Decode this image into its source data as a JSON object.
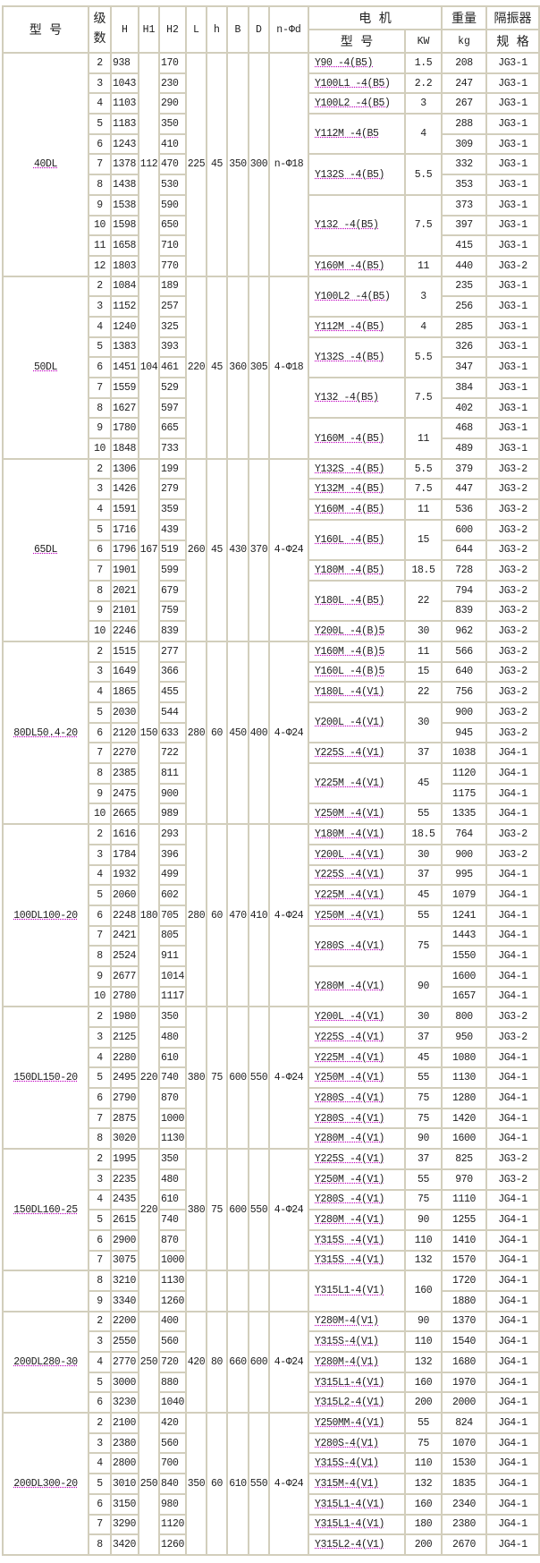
{
  "header": {
    "model": "型 号",
    "stages": "级数",
    "H": "H",
    "H1": "H1",
    "H2": "H2",
    "L": "L",
    "h": "h",
    "B": "B",
    "D": "D",
    "holes": "n-Φd",
    "motor": "电 机",
    "weight": "重量",
    "isolator": "隔振器",
    "motor_model": "型 号",
    "kw": "KW",
    "kg": "kg",
    "spec": "规 格"
  },
  "row_columns": [
    "stages",
    "H",
    "H2",
    "kg",
    "isolator_spec"
  ],
  "motor_columns": [
    "model",
    "kw",
    "rowspan"
  ],
  "groups": [
    {
      "model": "40DL",
      "H1": "112",
      "L": "225",
      "h": "45",
      "B": "350",
      "D": "300",
      "holes": "n-Φ18",
      "rows": [
        [
          "2",
          "938",
          "170",
          "208",
          "JG3-1"
        ],
        [
          "3",
          "1043",
          "230",
          "247",
          "JG3-1"
        ],
        [
          "4",
          "1103",
          "290",
          "267",
          "JG3-1"
        ],
        [
          "5",
          "1183",
          "350",
          "288",
          "JG3-1"
        ],
        [
          "6",
          "1243",
          "410",
          "309",
          "JG3-1"
        ],
        [
          "7",
          "1378",
          "470",
          "332",
          "JG3-1"
        ],
        [
          "8",
          "1438",
          "530",
          "353",
          "JG3-1"
        ],
        [
          "9",
          "1538",
          "590",
          "373",
          "JG3-1"
        ],
        [
          "10",
          "1598",
          "650",
          "397",
          "JG3-1"
        ],
        [
          "11",
          "1658",
          "710",
          "415",
          "JG3-1"
        ],
        [
          "12",
          "1803",
          "770",
          "440",
          "JG3-2"
        ]
      ],
      "motors": [
        [
          "Y90 -4(B5)",
          "1.5",
          1
        ],
        [
          "Y100L1 -4(B5)",
          "2.2",
          1
        ],
        [
          "Y100L2 -4(B5)",
          "3",
          1
        ],
        [
          "Y112M -4(B5",
          "4",
          2
        ],
        [
          "Y132S -4(B5)",
          "5.5",
          2
        ],
        [
          "Y132 -4(B5)",
          "7.5",
          3
        ],
        [
          "Y160M -4(B5)",
          "11",
          1
        ]
      ]
    },
    {
      "model": "50DL",
      "H1": "104",
      "L": "220",
      "h": "45",
      "B": "360",
      "D": "305",
      "holes": "4-Φ18",
      "rows": [
        [
          "2",
          "1084",
          "189",
          "235",
          "JG3-1"
        ],
        [
          "3",
          "1152",
          "257",
          "256",
          "JG3-1"
        ],
        [
          "4",
          "1240",
          "325",
          "285",
          "JG3-1"
        ],
        [
          "5",
          "1383",
          "393",
          "326",
          "JG3-1"
        ],
        [
          "6",
          "1451",
          "461",
          "347",
          "JG3-1"
        ],
        [
          "7",
          "1559",
          "529",
          "384",
          "JG3-1"
        ],
        [
          "8",
          "1627",
          "597",
          "402",
          "JG3-1"
        ],
        [
          "9",
          "1780",
          "665",
          "468",
          "JG3-1"
        ],
        [
          "10",
          "1848",
          "733",
          "489",
          "JG3-1"
        ]
      ],
      "motors": [
        [
          "Y100L2 -4(B5)",
          "3",
          2
        ],
        [
          "Y112M -4(B5)",
          "4",
          1
        ],
        [
          "Y132S -4(B5)",
          "5.5",
          2
        ],
        [
          "Y132 -4(B5)",
          "7.5",
          2
        ],
        [
          "Y160M -4(B5)",
          "11",
          2
        ]
      ]
    },
    {
      "model": "65DL",
      "H1": "167",
      "L": "260",
      "h": "45",
      "B": "430",
      "D": "370",
      "holes": "4-Φ24",
      "rows": [
        [
          "2",
          "1306",
          "199",
          "379",
          "JG3-2"
        ],
        [
          "3",
          "1426",
          "279",
          "447",
          "JG3-2"
        ],
        [
          "4",
          "1591",
          "359",
          "536",
          "JG3-2"
        ],
        [
          "5",
          "1716",
          "439",
          "600",
          "JG3-2"
        ],
        [
          "6",
          "1796",
          "519",
          "644",
          "JG3-2"
        ],
        [
          "7",
          "1901",
          "599",
          "728",
          "JG3-2"
        ],
        [
          "8",
          "2021",
          "679",
          "794",
          "JG3-2"
        ],
        [
          "9",
          "2101",
          "759",
          "839",
          "JG3-2"
        ],
        [
          "10",
          "2246",
          "839",
          "962",
          "JG3-2"
        ]
      ],
      "motors": [
        [
          "Y132S -4(B5)",
          "5.5",
          1
        ],
        [
          "Y132M -4(B5)",
          "7.5",
          1
        ],
        [
          "Y160M -4(B5)",
          "11",
          1
        ],
        [
          "Y160L -4(B5)",
          "15",
          2
        ],
        [
          "Y180M -4(B5)",
          "18.5",
          1
        ],
        [
          "Y180L -4(B5)",
          "22",
          2
        ],
        [
          "Y200L -4(B)5",
          "30",
          1
        ]
      ]
    },
    {
      "model": "80DL50.4-20",
      "H1": "150",
      "L": "280",
      "h": "60",
      "B": "450",
      "D": "400",
      "holes": "4-Φ24",
      "rows": [
        [
          "2",
          "1515",
          "277",
          "566",
          "JG3-2"
        ],
        [
          "3",
          "1649",
          "366",
          "640",
          "JG3-2"
        ],
        [
          "4",
          "1865",
          "455",
          "756",
          "JG3-2"
        ],
        [
          "5",
          "2030",
          "544",
          "900",
          "JG3-2"
        ],
        [
          "6",
          "2120",
          "633",
          "945",
          "JG3-2"
        ],
        [
          "7",
          "2270",
          "722",
          "1038",
          "JG4-1"
        ],
        [
          "8",
          "2385",
          "811",
          "1120",
          "JG4-1"
        ],
        [
          "9",
          "2475",
          "900",
          "1175",
          "JG4-1"
        ],
        [
          "10",
          "2665",
          "989",
          "1335",
          "JG4-1"
        ]
      ],
      "motors": [
        [
          "Y160M -4(B)5",
          "11",
          1
        ],
        [
          "Y160L -4(B)5",
          "15",
          1
        ],
        [
          "Y180L -4(V1)",
          "22",
          1
        ],
        [
          "Y200L -4(V1)",
          "30",
          2
        ],
        [
          "Y225S -4(V1)",
          "37",
          1
        ],
        [
          "Y225M -4(V1)",
          "45",
          2
        ],
        [
          "Y250M -4(V1)",
          "55",
          1
        ]
      ]
    },
    {
      "model": "100DL100-20",
      "H1": "180",
      "L": "280",
      "h": "60",
      "B": "470",
      "D": "410",
      "holes": "4-Φ24",
      "rows": [
        [
          "2",
          "1616",
          "293",
          "764",
          "JG3-2"
        ],
        [
          "3",
          "1784",
          "396",
          "900",
          "JG3-2"
        ],
        [
          "4",
          "1932",
          "499",
          "995",
          "JG4-1"
        ],
        [
          "5",
          "2060",
          "602",
          "1079",
          "JG4-1"
        ],
        [
          "6",
          "2248",
          "705",
          "1241",
          "JG4-1"
        ],
        [
          "7",
          "2421",
          "805",
          "1443",
          "JG4-1"
        ],
        [
          "8",
          "2524",
          "911",
          "1550",
          "JG4-1"
        ],
        [
          "9",
          "2677",
          "1014",
          "1600",
          "JG4-1"
        ],
        [
          "10",
          "2780",
          "1117",
          "1657",
          "JG4-1"
        ]
      ],
      "motors": [
        [
          "Y180M -4(V1)",
          "18.5",
          1
        ],
        [
          "Y200L -4(V1)",
          "30",
          1
        ],
        [
          "Y225S -4(V1)",
          "37",
          1
        ],
        [
          "Y225M -4(V1)",
          "45",
          1
        ],
        [
          "Y250M -4(V1)",
          "55",
          1
        ],
        [
          "Y280S -4(V1)",
          "75",
          2
        ],
        [
          "Y280M -4(V1)",
          "90",
          2
        ]
      ]
    },
    {
      "model": "150DL150-20",
      "H1": "220",
      "L": "380",
      "h": "75",
      "B": "600",
      "D": "550",
      "holes": "4-Φ24",
      "rows": [
        [
          "2",
          "1980",
          "350",
          "800",
          "JG3-2"
        ],
        [
          "3",
          "2125",
          "480",
          "950",
          "JG3-2"
        ],
        [
          "4",
          "2280",
          "610",
          "1080",
          "JG4-1"
        ],
        [
          "5",
          "2495",
          "740",
          "1130",
          "JG4-1"
        ],
        [
          "6",
          "2790",
          "870",
          "1280",
          "JG4-1"
        ],
        [
          "7",
          "2875",
          "1000",
          "1420",
          "JG4-1"
        ],
        [
          "8",
          "3020",
          "1130",
          "1600",
          "JG4-1"
        ]
      ],
      "motors": [
        [
          "Y200L -4(V1)",
          "30",
          1
        ],
        [
          "Y225S -4(V1)",
          "37",
          1
        ],
        [
          "Y225M -4(V1)",
          "45",
          1
        ],
        [
          "Y250M -4(V1)",
          "55",
          1
        ],
        [
          "Y280S -4(V1)",
          "75",
          1
        ],
        [
          "Y280S -4(V1)",
          "75",
          1
        ],
        [
          "Y280M -4(V1)",
          "90",
          1
        ]
      ]
    },
    {
      "model": "150DL160-25",
      "H1": "220",
      "L": "380",
      "h": "75",
      "B": "600",
      "D": "550",
      "holes": "4-Φ24",
      "rows": [
        [
          "2",
          "1995",
          "350",
          "825",
          "JG3-2"
        ],
        [
          "3",
          "2235",
          "480",
          "970",
          "JG3-2"
        ],
        [
          "4",
          "2435",
          "610",
          "1110",
          "JG4-1"
        ],
        [
          "5",
          "2615",
          "740",
          "1255",
          "JG4-1"
        ],
        [
          "6",
          "2900",
          "870",
          "1410",
          "JG4-1"
        ],
        [
          "7",
          "3075",
          "1000",
          "1570",
          "JG4-1"
        ]
      ],
      "motors": [
        [
          "Y225S -4(V1)",
          "37",
          1
        ],
        [
          "Y250M -4(V1)",
          "55",
          1
        ],
        [
          "Y280S -4(V1)",
          "75",
          1
        ],
        [
          "Y280M -4(V1)",
          "90",
          1
        ],
        [
          "Y315S -4(V1)",
          "110",
          1
        ],
        [
          "Y315S -4(V1)",
          "132",
          1
        ]
      ]
    },
    {
      "model": "",
      "H1": "",
      "L": "",
      "h": "",
      "B": "",
      "D": "",
      "holes": "",
      "rows": [
        [
          "8",
          "3210",
          "1130",
          "1720",
          "JG4-1"
        ],
        [
          "9",
          "3340",
          "1260",
          "1880",
          "JG4-1"
        ]
      ],
      "motors": [
        [
          "Y315L1-4(V1)",
          "160",
          2
        ]
      ]
    },
    {
      "model": "200DL280-30",
      "H1": "250",
      "L": "420",
      "h": "80",
      "B": "660",
      "D": "600",
      "holes": "4-Φ24",
      "rows": [
        [
          "2",
          "2200",
          "400",
          "1370",
          "JG4-1"
        ],
        [
          "3",
          "2550",
          "560",
          "1540",
          "JG4-1"
        ],
        [
          "4",
          "2770",
          "720",
          "1680",
          "JG4-1"
        ],
        [
          "5",
          "3000",
          "880",
          "1970",
          "JG4-1"
        ],
        [
          "6",
          "3230",
          "1040",
          "2000",
          "JG4-1"
        ]
      ],
      "motors": [
        [
          "Y280M-4(V1)",
          "90",
          1
        ],
        [
          "Y315S-4(V1)",
          "110",
          1
        ],
        [
          "Y280M-4(V1)",
          "132",
          1
        ],
        [
          "Y315L1-4(V1)",
          "160",
          1
        ],
        [
          "Y315L2-4(V1)",
          "200",
          1
        ]
      ]
    },
    {
      "model": "200DL300-20",
      "H1": "250",
      "L": "350",
      "h": "60",
      "B": "610",
      "D": "550",
      "holes": "4-Φ24",
      "rows": [
        [
          "2",
          "2100",
          "420",
          "824",
          "JG4-1"
        ],
        [
          "3",
          "2380",
          "560",
          "1070",
          "JG4-1"
        ],
        [
          "4",
          "2800",
          "700",
          "1530",
          "JG4-1"
        ],
        [
          "5",
          "3010",
          "840",
          "1835",
          "JG4-1"
        ],
        [
          "6",
          "3150",
          "980",
          "2340",
          "JG4-1"
        ],
        [
          "7",
          "3290",
          "1120",
          "2380",
          "JG4-1"
        ],
        [
          "8",
          "3420",
          "1260",
          "2670",
          "JG4-1"
        ]
      ],
      "motors": [
        [
          "Y250MM-4(V1)",
          "55",
          1
        ],
        [
          "Y280S-4(V1)",
          "75",
          1
        ],
        [
          "Y315S-4(V1)",
          "110",
          1
        ],
        [
          "Y315M-4(V1)",
          "132",
          1
        ],
        [
          "Y315L1-4(V1)",
          "160",
          1
        ],
        [
          "Y315L1-4(V1)",
          "180",
          1
        ],
        [
          "Y315L2-4(V1)",
          "200",
          1
        ]
      ]
    }
  ]
}
